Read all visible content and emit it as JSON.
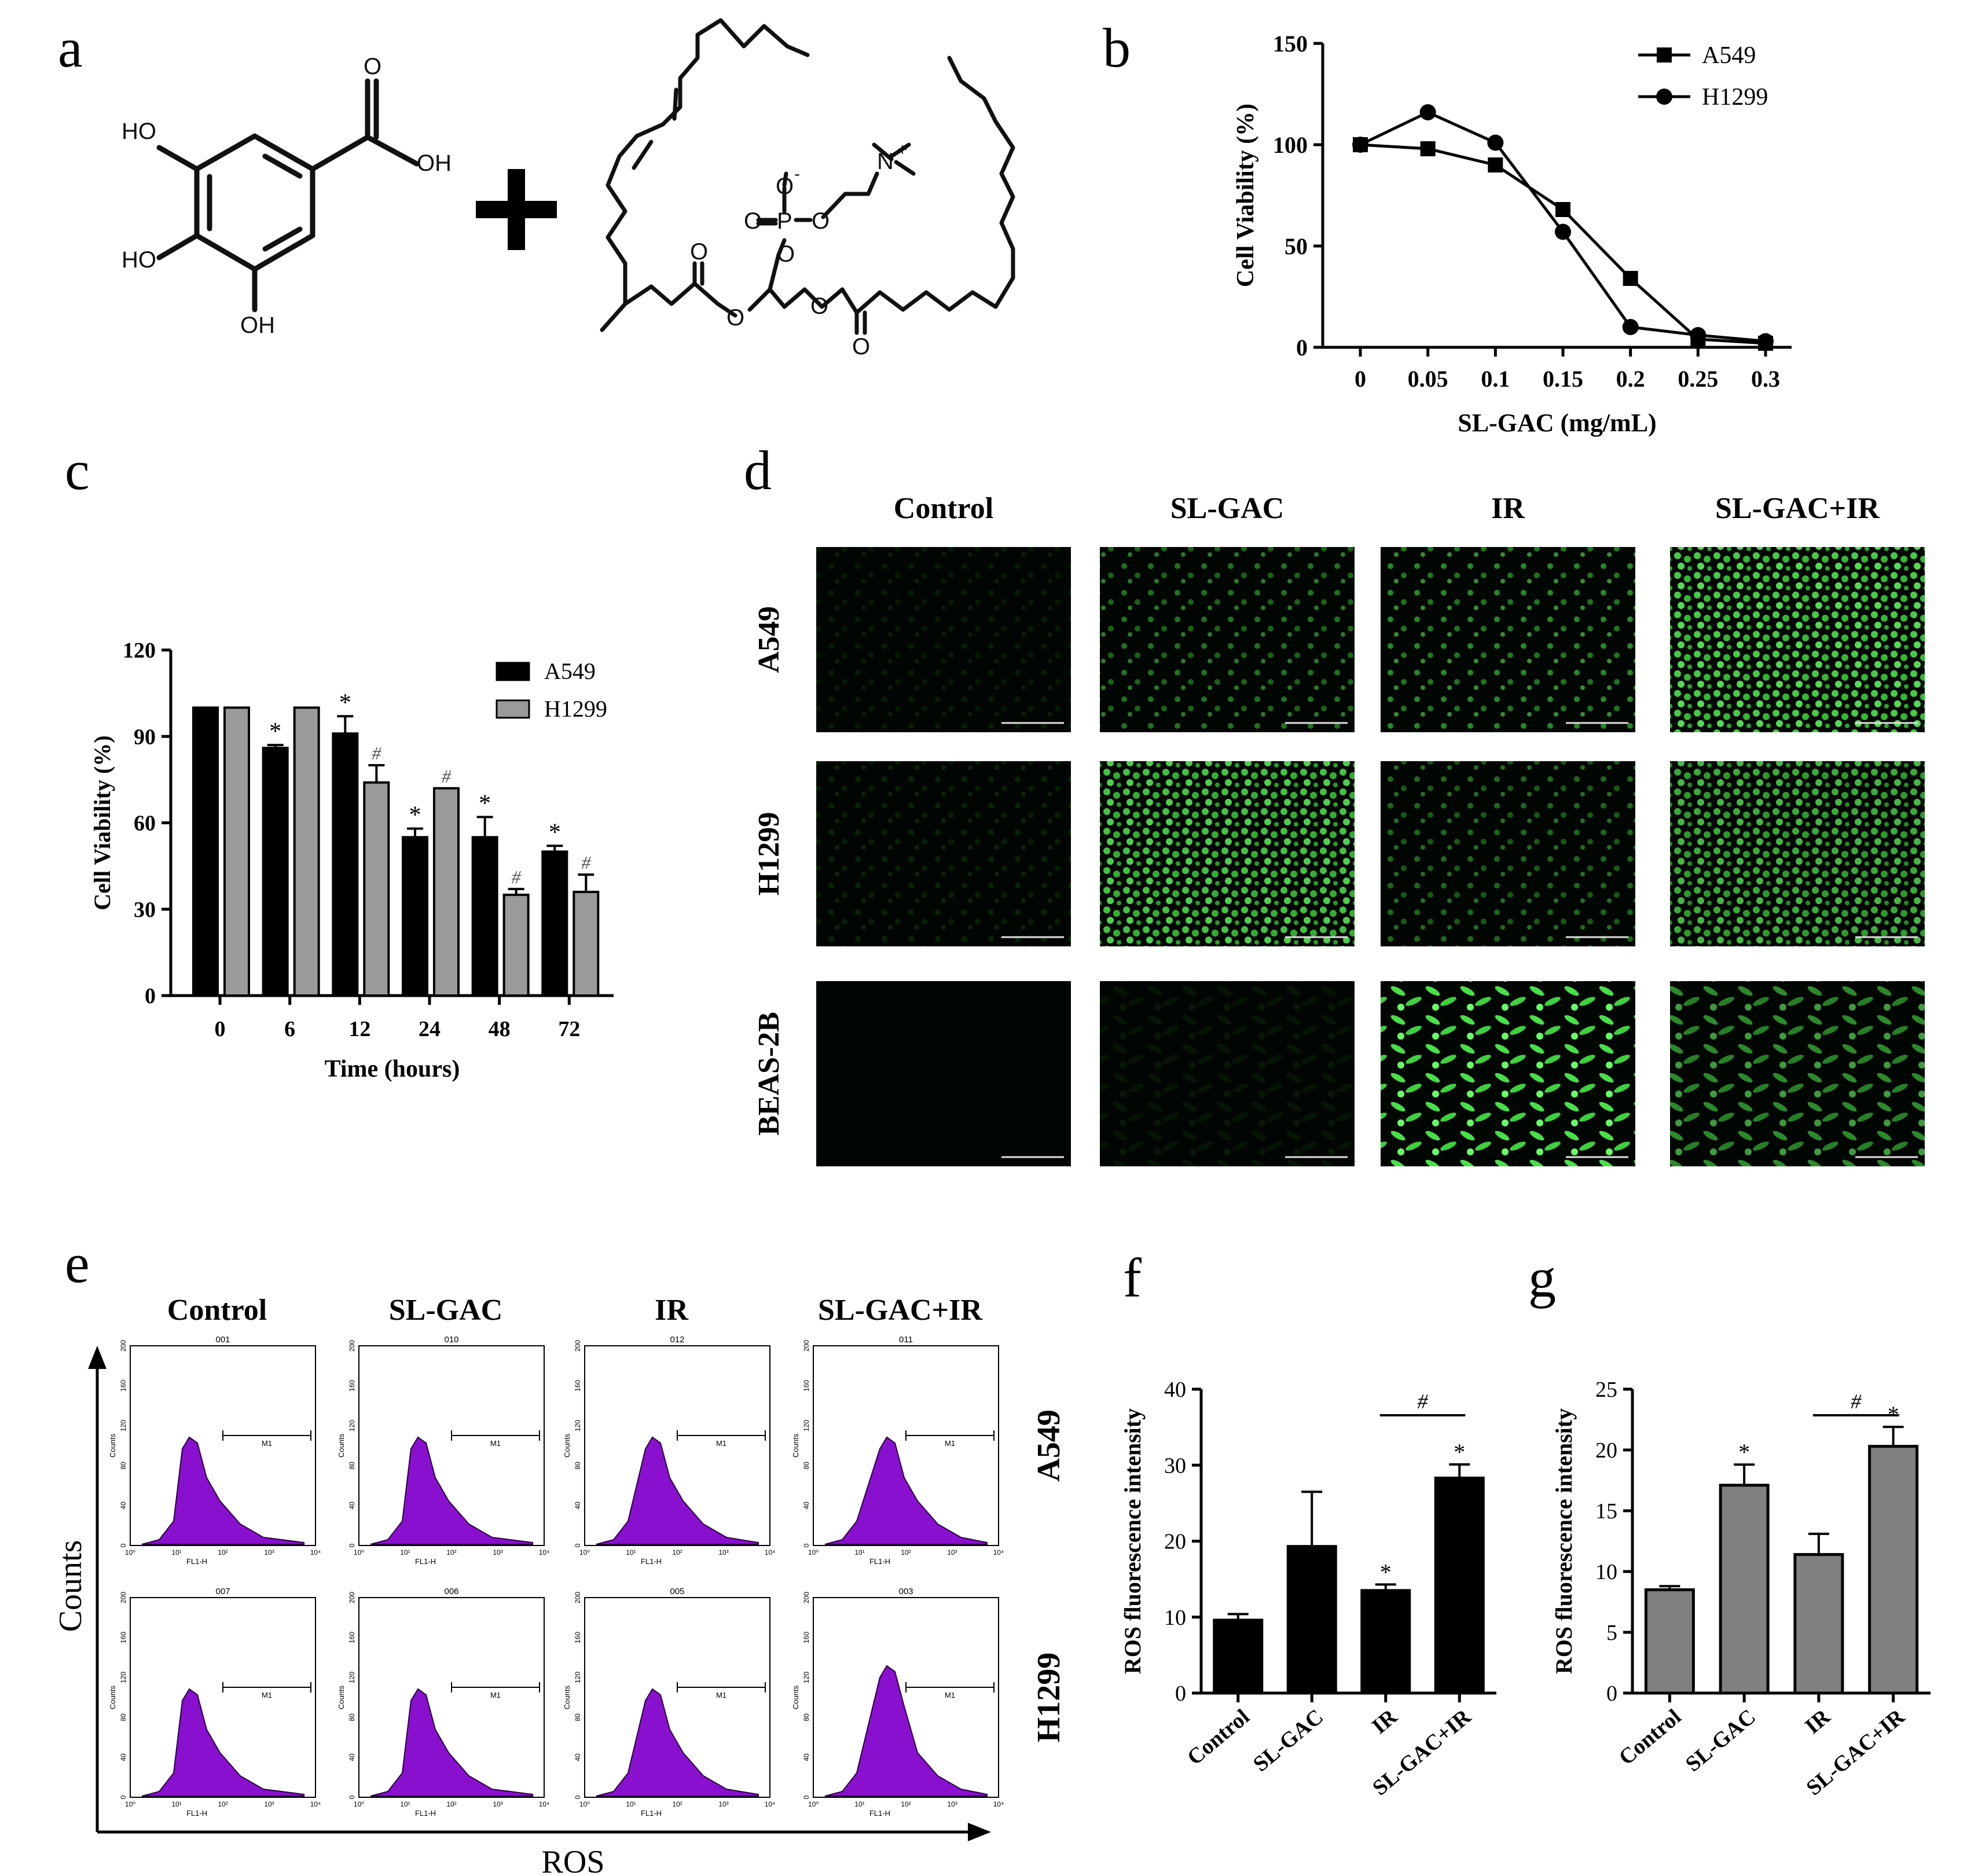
{
  "panels": {
    "a": {
      "letter": "a"
    },
    "b": {
      "letter": "b"
    },
    "c": {
      "letter": "c"
    },
    "d": {
      "letter": "d"
    },
    "e": {
      "letter": "e"
    },
    "f": {
      "letter": "f"
    },
    "g": {
      "letter": "g"
    }
  },
  "chemistry": {
    "gallic_acid": {
      "oh_top_left": "HO",
      "oh_mid_left": "HO",
      "oh_bottom": "OH",
      "oh_acid": "OH",
      "o_carbonyl": "O"
    },
    "lipid": {
      "o_minus": "O",
      "minus_sign": "-",
      "o_double": "O",
      "p": "P",
      "o_right": "O",
      "o_down": "O",
      "n": "N",
      "plus_sign": "+",
      "o_ester1": "O",
      "o_ester2": "O",
      "o_carbonyl1": "O",
      "o_carbonyl2": "O"
    }
  },
  "chart_data": [
    {
      "panel": "b",
      "type": "line",
      "xlabel": "SL-GAC  (mg/mL)",
      "ylabel": "Cell Viability (%)",
      "categories": [
        "0",
        "0.05",
        "0.1",
        "0.15",
        "0.2",
        "0.25",
        "0.3"
      ],
      "ylim": [
        0,
        150
      ],
      "yticks": [
        "0",
        "50",
        "100",
        "150"
      ],
      "legend": "top-right",
      "series": [
        {
          "name": "A549",
          "marker": "square",
          "values": [
            100,
            98,
            90,
            68,
            34,
            4,
            2
          ]
        },
        {
          "name": "H1299",
          "marker": "circle",
          "values": [
            100,
            116,
            101,
            57,
            10,
            6,
            3
          ]
        }
      ]
    },
    {
      "panel": "c",
      "type": "bar",
      "xlabel": "Time (hours)",
      "ylabel": "Cell Viability (%)",
      "categories": [
        "0",
        "6",
        "12",
        "24",
        "48",
        "72"
      ],
      "ylim": [
        0,
        120
      ],
      "yticks": [
        "0",
        "30",
        "60",
        "90",
        "120"
      ],
      "legend": "top-right",
      "series": [
        {
          "name": "A549",
          "color": "#000000",
          "values": [
            100,
            86,
            91,
            55,
            55,
            50
          ],
          "errors": [
            0,
            1,
            6,
            3,
            7,
            2
          ],
          "marks": [
            "",
            "*",
            "*",
            "*",
            "*",
            "*"
          ]
        },
        {
          "name": "H1299",
          "color": "#9a9a9a",
          "values": [
            100,
            100,
            74,
            72,
            35,
            36
          ],
          "errors": [
            0,
            0,
            6,
            0,
            2,
            6
          ],
          "marks": [
            "",
            "",
            "#",
            "#",
            "#",
            "#"
          ]
        }
      ]
    },
    {
      "panel": "f",
      "type": "bar",
      "ylabel": "ROS fluorescence intensity",
      "categories": [
        "Control",
        "SL-GAC",
        "IR",
        "SL-GAC+IR"
      ],
      "ylim": [
        0,
        40
      ],
      "yticks": [
        "0",
        "10",
        "20",
        "30",
        "40"
      ],
      "color": "#000000",
      "values": [
        9.6,
        19.3,
        13.5,
        28.3
      ],
      "errors": [
        0.8,
        7.2,
        0.8,
        1.8
      ],
      "marks": [
        "",
        "",
        "*",
        "*"
      ],
      "bracket": {
        "from": 2,
        "to": 3,
        "label": "#"
      }
    },
    {
      "panel": "g",
      "type": "bar",
      "ylabel": "ROS fluorescence intensity",
      "categories": [
        "Control",
        "SL-GAC",
        "IR",
        "SL-GAC+IR"
      ],
      "ylim": [
        0,
        25
      ],
      "yticks": [
        "0",
        "5",
        "10",
        "15",
        "20",
        "25"
      ],
      "color": "#808080",
      "values": [
        8.5,
        17.1,
        11.4,
        20.3
      ],
      "errors": [
        0.3,
        1.7,
        1.7,
        1.6
      ],
      "marks": [
        "",
        "*",
        "",
        "*"
      ],
      "bracket": {
        "from": 2,
        "to": 3,
        "label": "#"
      }
    }
  ],
  "fluorescence": {
    "columns": [
      "Control",
      "SL-GAC",
      "IR",
      "SL-GAC+IR"
    ],
    "rows": [
      "A549",
      "H1299",
      "BEAS-2B"
    ],
    "intensity": [
      [
        0.05,
        0.45,
        0.55,
        0.85
      ],
      [
        0.08,
        0.8,
        0.4,
        0.7
      ],
      [
        0.0,
        0.02,
        0.95,
        0.55
      ]
    ]
  },
  "flow": {
    "columns": [
      "Control",
      "SL-GAC",
      "IR",
      "SL-GAC+IR"
    ],
    "rows": [
      "A549",
      "H1299"
    ],
    "sample_ids": [
      [
        "001",
        "010",
        "012",
        "011"
      ],
      [
        "007",
        "006",
        "005",
        "003"
      ]
    ],
    "gate_label": "M1",
    "axis_x": "FL1-H",
    "axis_y": "Counts",
    "yticks": [
      "0",
      "40",
      "80",
      "120",
      "160",
      "200"
    ],
    "xticks": [
      "10⁰",
      "10¹",
      "10²",
      "10³",
      "10⁴"
    ],
    "big_y_label": "Counts",
    "big_x_label": "ROS",
    "fill_color": "#8a10d0"
  }
}
